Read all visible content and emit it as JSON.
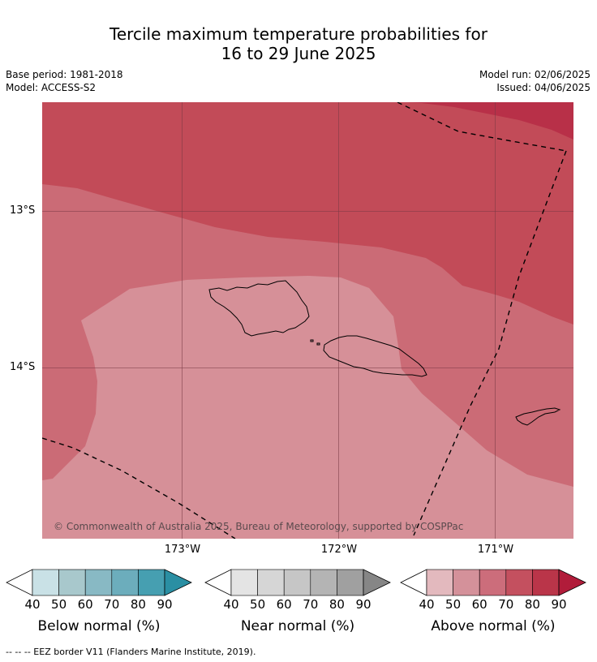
{
  "title": {
    "line1": "Tercile maximum temperature probabilities for",
    "line2": "16 to 29 June 2025"
  },
  "meta": {
    "base_period": "Base period: 1981-2018",
    "model": "Model: ACCESS-S2",
    "model_run": "Model run: 02/06/2025",
    "issued": "Issued: 04/06/2025"
  },
  "axes": {
    "lat_labels": [
      "13°S",
      "14°S"
    ],
    "lon_labels": [
      "173°W",
      "172°W",
      "171°W"
    ]
  },
  "copyright": "© Commonwealth of Australia 2025, Bureau of Meteorology, supported by COSPPac",
  "colorbars": {
    "ticks": [
      "40",
      "50",
      "60",
      "70",
      "80",
      "90"
    ],
    "below": {
      "label": "Below normal (%)",
      "colors": [
        "#ffffff",
        "#c9e1e6",
        "#a8c8cc",
        "#88b9c4",
        "#6cadbc",
        "#469fb1",
        "#2a8fa3"
      ]
    },
    "near": {
      "label": "Near normal (%)",
      "colors": [
        "#ffffff",
        "#e4e4e4",
        "#d6d6d6",
        "#c6c6c6",
        "#b4b4b4",
        "#a0a0a0",
        "#868686"
      ]
    },
    "above": {
      "label": "Above normal (%)",
      "colors": [
        "#ffffff",
        "#e3b9be",
        "#d4919a",
        "#cc6d7b",
        "#c4505f",
        "#ba3549",
        "#b11c3a"
      ]
    }
  },
  "map_colors": {
    "band_50_60": "#d69098",
    "band_60_70": "#cb6b76",
    "band_70_80": "#c24b58",
    "band_80_90": "#b83048",
    "gridline": "#7a3a44",
    "coast": "#000000",
    "eez": "#000000"
  },
  "footer": "--  --  -- EEZ border V11 (Flanders Marine Institute, 2019)."
}
